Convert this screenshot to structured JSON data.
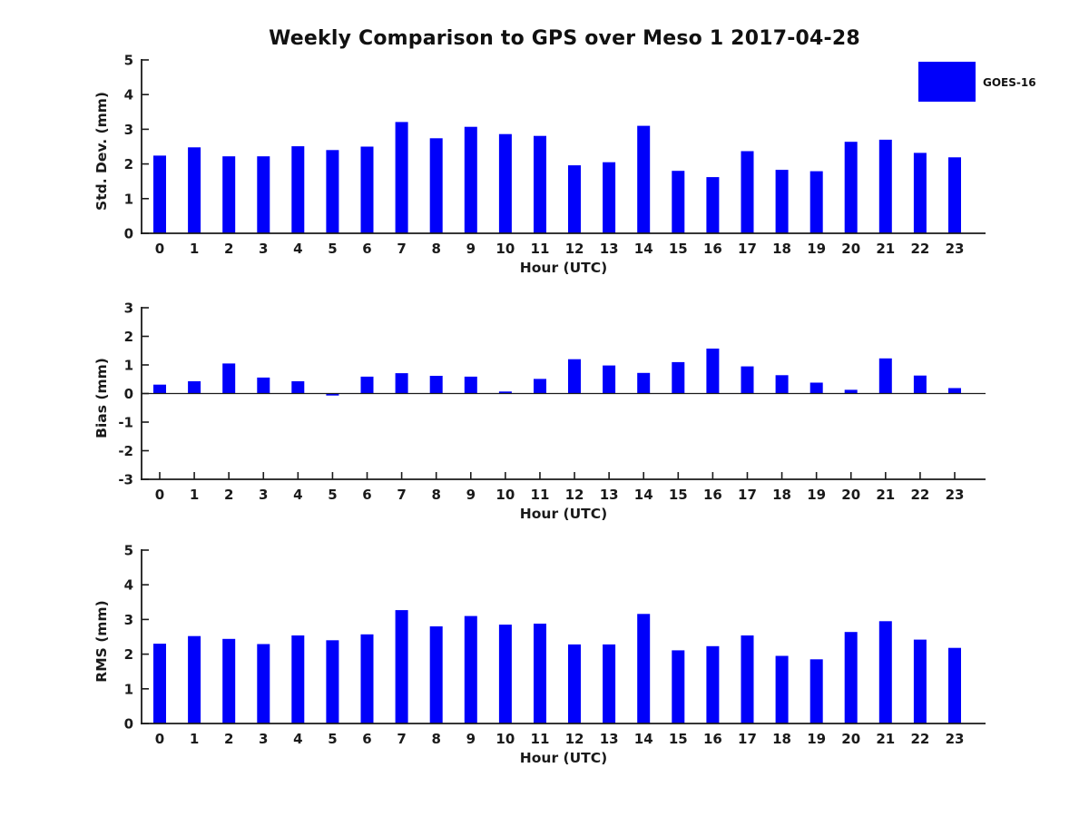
{
  "title": "Weekly Comparison to GPS over Meso 1 2017-04-28",
  "legend": {
    "label": "GOES-16",
    "color": "#0000fa"
  },
  "colors": {
    "bar": "#0000fa",
    "axis": "#1a1a1a",
    "text": "#1a1a1a"
  },
  "chart_data": [
    {
      "type": "bar",
      "ylabel": "Std. Dev. (mm)",
      "xlabel": "Hour (UTC)",
      "ylim": [
        0,
        5
      ],
      "yticks": [
        0,
        1,
        2,
        3,
        4,
        5
      ],
      "grid": false,
      "legend_position": "upper-right-outside",
      "categories": [
        "0",
        "1",
        "2",
        "3",
        "4",
        "5",
        "6",
        "7",
        "8",
        "9",
        "10",
        "11",
        "12",
        "13",
        "14",
        "15",
        "16",
        "17",
        "18",
        "19",
        "20",
        "21",
        "22",
        "23"
      ],
      "series": [
        {
          "name": "GOES-16",
          "values": [
            2.24,
            2.48,
            2.22,
            2.22,
            2.51,
            2.4,
            2.5,
            3.21,
            2.74,
            3.07,
            2.86,
            2.81,
            1.96,
            2.05,
            3.1,
            1.8,
            1.62,
            2.37,
            1.83,
            1.79,
            2.64,
            2.7,
            2.32,
            2.19
          ]
        }
      ]
    },
    {
      "type": "bar",
      "ylabel": "Bias (mm)",
      "xlabel": "Hour (UTC)",
      "ylim": [
        -3,
        3
      ],
      "yticks": [
        -3,
        -2,
        -1,
        0,
        1,
        2,
        3
      ],
      "grid": false,
      "categories": [
        "0",
        "1",
        "2",
        "3",
        "4",
        "5",
        "6",
        "7",
        "8",
        "9",
        "10",
        "11",
        "12",
        "13",
        "14",
        "15",
        "16",
        "17",
        "18",
        "19",
        "20",
        "21",
        "22",
        "23"
      ],
      "series": [
        {
          "name": "GOES-16",
          "values": [
            0.31,
            0.43,
            1.05,
            0.56,
            0.43,
            -0.07,
            0.59,
            0.71,
            0.62,
            0.59,
            0.07,
            0.51,
            1.2,
            0.98,
            0.72,
            1.1,
            1.57,
            0.95,
            0.64,
            0.38,
            0.13,
            1.23,
            0.63,
            0.19
          ]
        }
      ]
    },
    {
      "type": "bar",
      "ylabel": "RMS (mm)",
      "xlabel": "Hour (UTC)",
      "ylim": [
        0,
        5
      ],
      "yticks": [
        0,
        1,
        2,
        3,
        4,
        5
      ],
      "grid": false,
      "categories": [
        "0",
        "1",
        "2",
        "3",
        "4",
        "5",
        "6",
        "7",
        "8",
        "9",
        "10",
        "11",
        "12",
        "13",
        "14",
        "15",
        "16",
        "17",
        "18",
        "19",
        "20",
        "21",
        "22",
        "23"
      ],
      "series": [
        {
          "name": "GOES-16",
          "values": [
            2.3,
            2.52,
            2.44,
            2.29,
            2.54,
            2.4,
            2.57,
            3.27,
            2.8,
            3.1,
            2.85,
            2.88,
            2.28,
            2.28,
            3.16,
            2.11,
            2.23,
            2.54,
            1.95,
            1.85,
            2.64,
            2.95,
            2.42,
            2.18
          ]
        }
      ]
    }
  ]
}
